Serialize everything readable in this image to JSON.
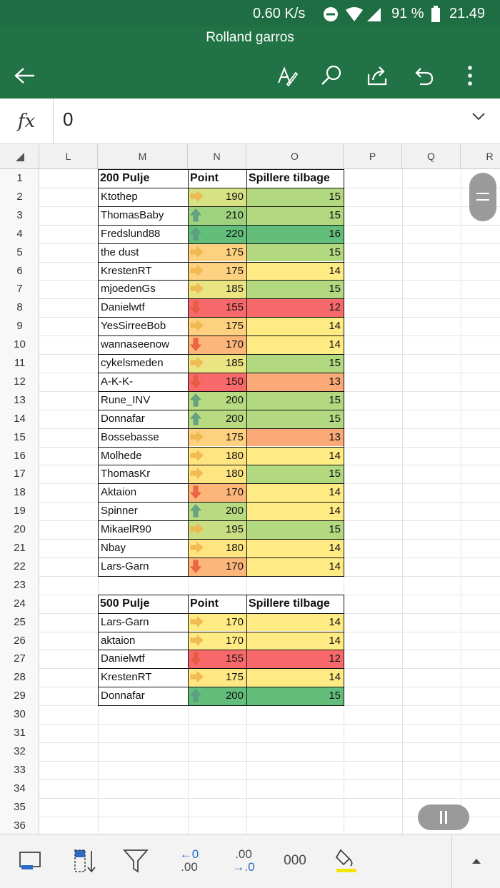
{
  "status_bar": {
    "net_speed": "0.60 K/s",
    "battery": "91 %",
    "time": "21.49"
  },
  "app_bar": {
    "title": "Rolland garros",
    "icons": [
      "back-arrow-icon",
      "draw-pen-icon",
      "search-icon",
      "share-icon",
      "undo-icon",
      "more-vertical-icon"
    ]
  },
  "formula_bar": {
    "fx_label": "fx",
    "value": "0"
  },
  "columns": [
    "L",
    "M",
    "N",
    "O",
    "P",
    "Q",
    "R"
  ],
  "rows": [
    "1",
    "2",
    "3",
    "4",
    "5",
    "6",
    "7",
    "8",
    "9",
    "10",
    "11",
    "12",
    "13",
    "14",
    "15",
    "16",
    "17",
    "18",
    "19",
    "20",
    "21",
    "22",
    "23",
    "24",
    "25",
    "26",
    "27",
    "28",
    "29",
    "30",
    "31",
    "32",
    "33",
    "34",
    "35",
    "36"
  ],
  "colors": {
    "green_strong": "#63be7b",
    "green_light": "#b2d880",
    "yellow": "#ffeb84",
    "orange_light": "#fdc47d",
    "orange": "#fba977",
    "red": "#f8696b",
    "appbar": "#217346",
    "arrow_up": "#5a9a83",
    "arrow_side": "#f0b54b",
    "arrow_down": "#e8593c"
  },
  "table1": {
    "headers": [
      "200 Pulje",
      "Point",
      "Spillere tilbage"
    ],
    "rows": [
      {
        "name": "Ktothep",
        "point": "190",
        "trend": "side",
        "point_color": "#d6e283",
        "players": "15",
        "players_color": "#b2d880"
      },
      {
        "name": "ThomasBaby",
        "point": "210",
        "trend": "up",
        "point_color": "#9fd27f",
        "players": "15",
        "players_color": "#b2d880"
      },
      {
        "name": "Fredslund88",
        "point": "220",
        "trend": "up",
        "point_color": "#63be7b",
        "players": "16",
        "players_color": "#63be7b"
      },
      {
        "name": "the dust",
        "point": "175",
        "trend": "side",
        "point_color": "#fdd17f",
        "players": "15",
        "players_color": "#b2d880"
      },
      {
        "name": "KrestenRT",
        "point": "175",
        "trend": "side",
        "point_color": "#fdd17f",
        "players": "14",
        "players_color": "#ffeb84"
      },
      {
        "name": "mjoedenGs",
        "point": "185",
        "trend": "side",
        "point_color": "#ebe483",
        "players": "15",
        "players_color": "#b2d880"
      },
      {
        "name": "Danielwtf",
        "point": "155",
        "trend": "down",
        "point_color": "#f8696b",
        "players": "12",
        "players_color": "#f8696b"
      },
      {
        "name": "YesSirreeBob",
        "point": "175",
        "trend": "side",
        "point_color": "#fdd17f",
        "players": "14",
        "players_color": "#ffeb84"
      },
      {
        "name": "wannaseenow",
        "point": "170",
        "trend": "down",
        "point_color": "#fcb67a",
        "players": "14",
        "players_color": "#ffeb84"
      },
      {
        "name": "cykelsmeden",
        "point": "185",
        "trend": "side",
        "point_color": "#ebe483",
        "players": "15",
        "players_color": "#b2d880"
      },
      {
        "name": "A-K-K-",
        "point": "150",
        "trend": "down",
        "point_color": "#f8696b",
        "players": "13",
        "players_color": "#fba977"
      },
      {
        "name": "Rune_INV",
        "point": "200",
        "trend": "up",
        "point_color": "#b8da81",
        "players": "15",
        "players_color": "#b2d880"
      },
      {
        "name": "Donnafar",
        "point": "200",
        "trend": "up",
        "point_color": "#b8da81",
        "players": "15",
        "players_color": "#b2d880"
      },
      {
        "name": "Bossebasse",
        "point": "175",
        "trend": "side",
        "point_color": "#fdd17f",
        "players": "13",
        "players_color": "#fba977"
      },
      {
        "name": "Molhede",
        "point": "180",
        "trend": "side",
        "point_color": "#fee582",
        "players": "14",
        "players_color": "#ffeb84"
      },
      {
        "name": "ThomasKr",
        "point": "180",
        "trend": "side",
        "point_color": "#fee582",
        "players": "15",
        "players_color": "#b2d880"
      },
      {
        "name": "Aktaion",
        "point": "170",
        "trend": "down",
        "point_color": "#fcb67a",
        "players": "14",
        "players_color": "#ffeb84"
      },
      {
        "name": "Spinner",
        "point": "200",
        "trend": "up",
        "point_color": "#b8da81",
        "players": "14",
        "players_color": "#ffeb84"
      },
      {
        "name": "MikaelR90",
        "point": "195",
        "trend": "side",
        "point_color": "#c9de82",
        "players": "15",
        "players_color": "#b2d880"
      },
      {
        "name": "Nbay",
        "point": "180",
        "trend": "side",
        "point_color": "#fee582",
        "players": "14",
        "players_color": "#ffeb84"
      },
      {
        "name": "Lars-Garn",
        "point": "170",
        "trend": "down",
        "point_color": "#fcb67a",
        "players": "14",
        "players_color": "#ffeb84"
      }
    ]
  },
  "table2": {
    "headers": [
      "500 Pulje",
      "Point",
      "Spillere tilbage"
    ],
    "rows": [
      {
        "name": "Lars-Garn",
        "point": "170",
        "trend": "side",
        "point_color": "#ffeb84",
        "players": "14",
        "players_color": "#ffeb84"
      },
      {
        "name": "aktaion",
        "point": "170",
        "trend": "side",
        "point_color": "#ffeb84",
        "players": "14",
        "players_color": "#ffeb84"
      },
      {
        "name": "Danielwtf",
        "point": "155",
        "trend": "down",
        "point_color": "#f8696b",
        "players": "12",
        "players_color": "#f8696b"
      },
      {
        "name": "KrestenRT",
        "point": "175",
        "trend": "side",
        "point_color": "#ffe884",
        "players": "14",
        "players_color": "#ffeb84"
      },
      {
        "name": "Donnafar",
        "point": "200",
        "trend": "up",
        "point_color": "#63be7b",
        "players": "15",
        "players_color": "#63be7b"
      }
    ]
  },
  "bottom_toolbar": {
    "decrease_decimal": [
      "←0",
      ".00"
    ],
    "increase_decimal": [
      ".00",
      "→.0"
    ],
    "thousands_label": "000",
    "icons": [
      "borders-icon",
      "sort-icon",
      "filter-icon",
      "decrease-decimal-icon",
      "increase-decimal-icon",
      "thousands-separator-icon",
      "fill-color-icon",
      "expand-up-icon"
    ]
  }
}
